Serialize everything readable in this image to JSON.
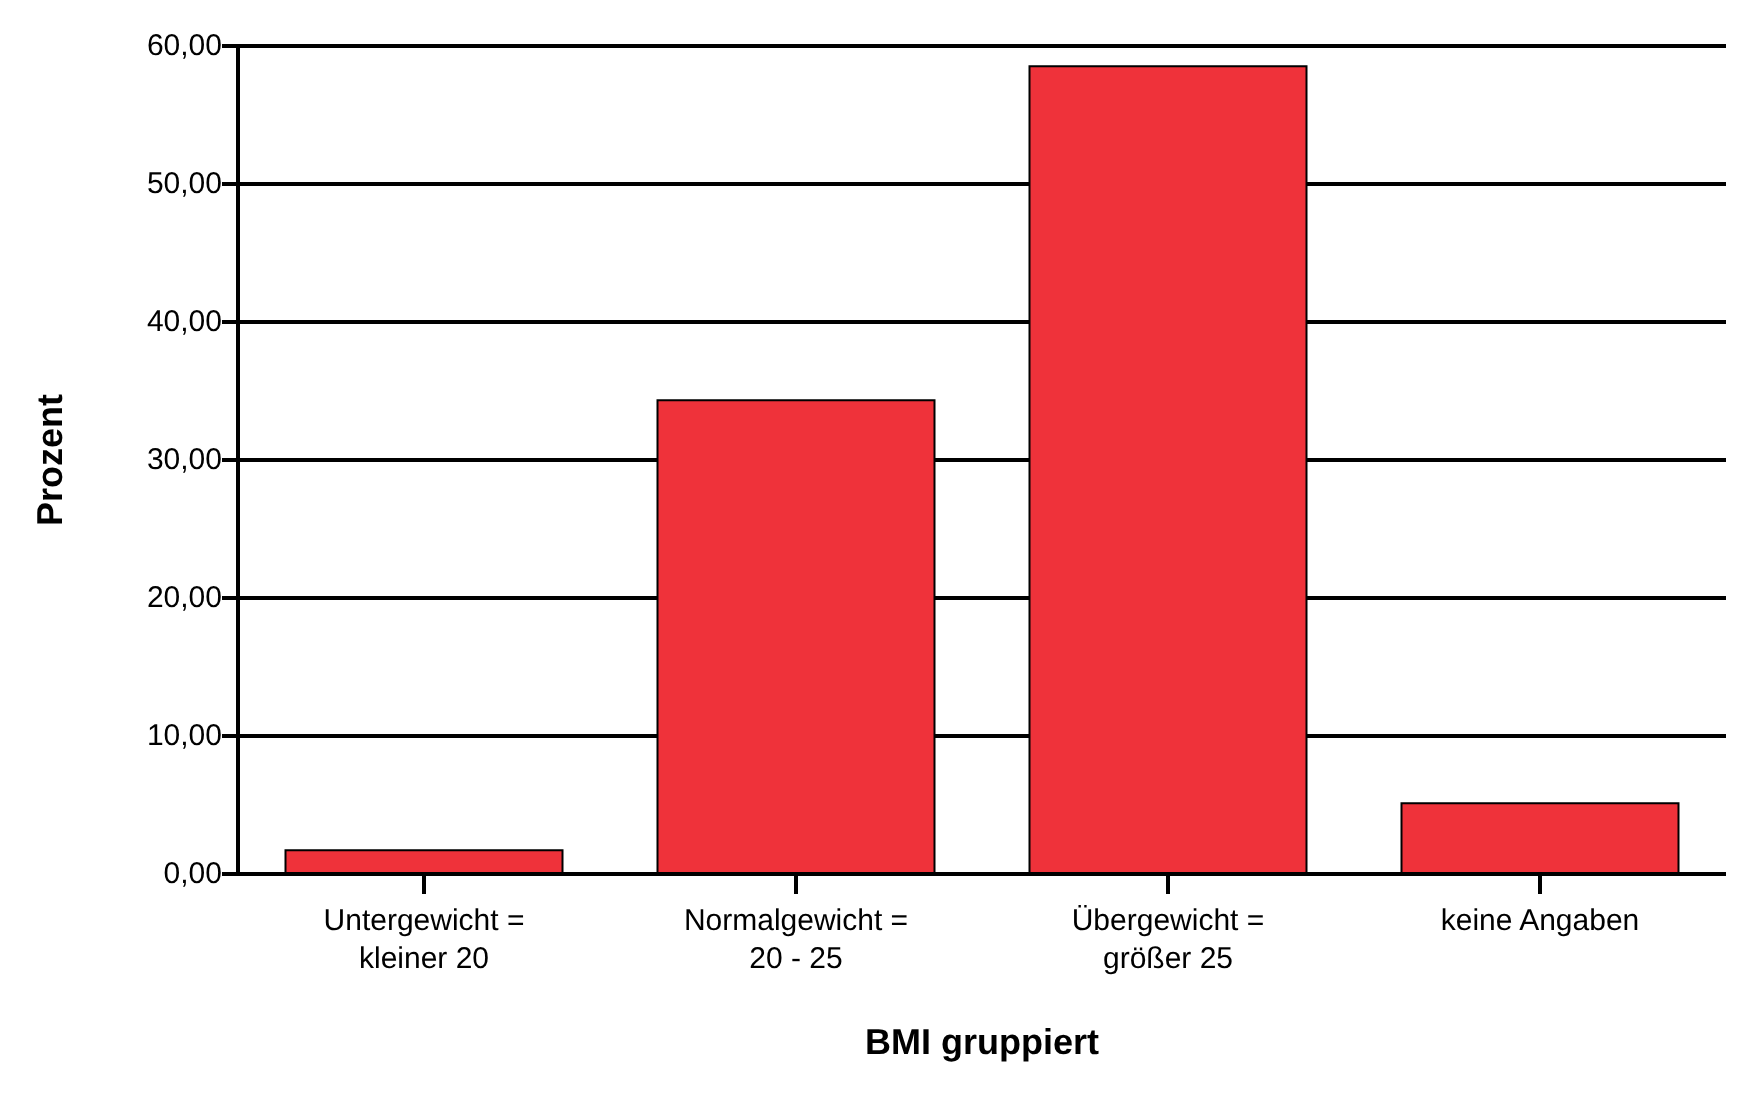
{
  "chart_data": {
    "type": "bar",
    "xlabel": "BMI gruppiert",
    "ylabel": "Prozent",
    "categories": [
      "Untergewicht =\nkleiner 20",
      "Normalgewicht =\n20 - 25",
      "Übergewicht =\ngrößer 25",
      "keine Angaben"
    ],
    "values": [
      1.8,
      34.4,
      58.6,
      5.2
    ],
    "color": "#ef323a",
    "ylim": [
      0,
      60
    ],
    "yticks": [
      {
        "value": 0,
        "label": "0,00"
      },
      {
        "value": 10,
        "label": "10,00"
      },
      {
        "value": 20,
        "label": "20,00"
      },
      {
        "value": 30,
        "label": "30,00"
      },
      {
        "value": 40,
        "label": "40,00"
      },
      {
        "value": 50,
        "label": "50,00"
      },
      {
        "value": 60,
        "label": "60,00"
      }
    ],
    "grid": "y"
  }
}
